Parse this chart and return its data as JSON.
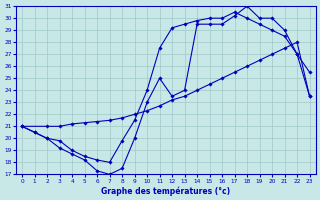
{
  "title": "Graphe des températures (°c)",
  "bg_color": "#c8e8e8",
  "grid_color": "#a0c8c8",
  "line_color": "#0000bb",
  "xlim": [
    -0.5,
    23.5
  ],
  "ylim": [
    17,
    31
  ],
  "xticks": [
    0,
    1,
    2,
    3,
    4,
    5,
    6,
    7,
    8,
    9,
    10,
    11,
    12,
    13,
    14,
    15,
    16,
    17,
    18,
    19,
    20,
    21,
    22,
    23
  ],
  "yticks": [
    17,
    18,
    19,
    20,
    21,
    22,
    23,
    24,
    25,
    26,
    27,
    28,
    29,
    30,
    31
  ],
  "line1_x": [
    0,
    1,
    2,
    3,
    4,
    5,
    6,
    7,
    8,
    9,
    10,
    11,
    12,
    13,
    14,
    15,
    16,
    17,
    18,
    19,
    20,
    21,
    22,
    23
  ],
  "line1_y": [
    21.0,
    20.5,
    20.0,
    19.2,
    18.7,
    18.2,
    17.3,
    17.0,
    17.5,
    20.0,
    23.0,
    25.0,
    23.5,
    24.0,
    29.5,
    29.5,
    29.5,
    30.2,
    31.0,
    30.0,
    30.0,
    29.0,
    27.0,
    25.5
  ],
  "line2_x": [
    0,
    2,
    3,
    4,
    5,
    6,
    7,
    8,
    9,
    10,
    11,
    12,
    13,
    14,
    15,
    16,
    17,
    18,
    19,
    20,
    21,
    22,
    23
  ],
  "line2_y": [
    21.0,
    21.0,
    21.0,
    21.2,
    21.3,
    21.4,
    21.5,
    21.7,
    22.0,
    22.3,
    22.7,
    23.2,
    23.5,
    24.0,
    24.5,
    25.0,
    25.5,
    26.0,
    26.5,
    27.0,
    27.5,
    28.0,
    23.5
  ],
  "line3_x": [
    0,
    1,
    2,
    3,
    4,
    5,
    6,
    7,
    8,
    9,
    10,
    11,
    12,
    13,
    14,
    15,
    16,
    17,
    18,
    19,
    20,
    21,
    22,
    23
  ],
  "line3_y": [
    21.0,
    20.5,
    20.0,
    19.8,
    19.0,
    18.5,
    18.2,
    18.0,
    19.8,
    21.5,
    24.0,
    27.5,
    29.2,
    29.5,
    29.8,
    30.0,
    30.0,
    30.5,
    30.0,
    29.5,
    29.0,
    28.5,
    27.0,
    23.5
  ]
}
